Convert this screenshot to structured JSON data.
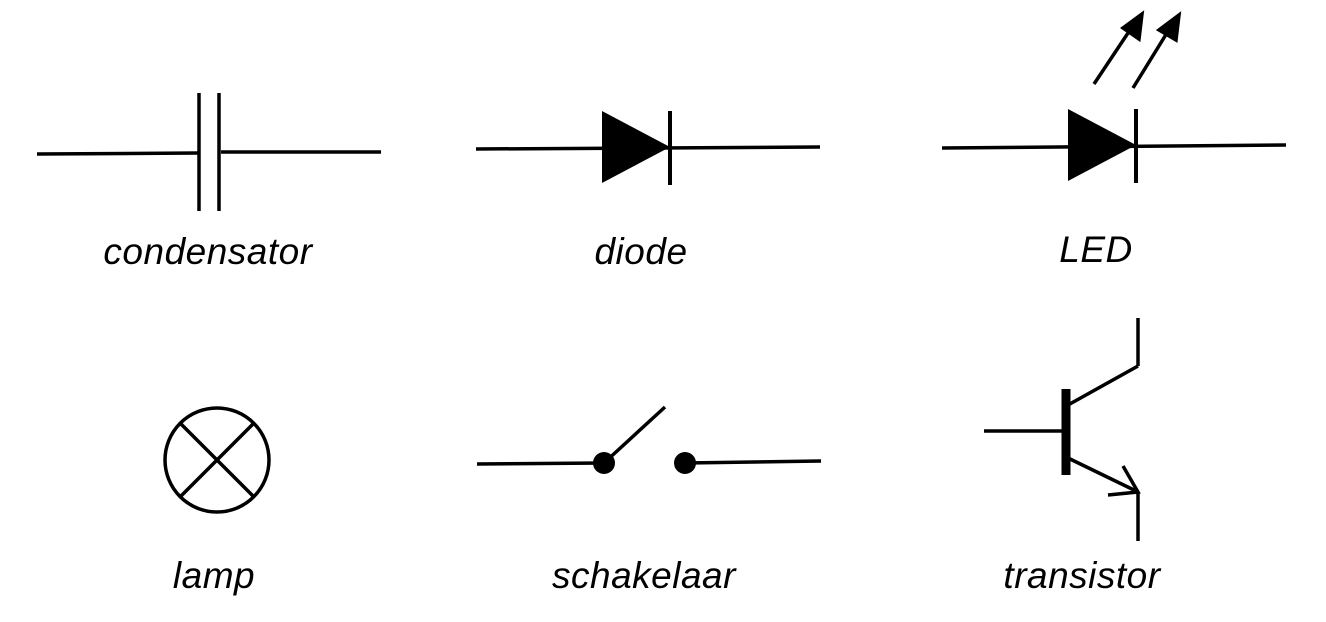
{
  "components": [
    {
      "id": "condensator",
      "label": "condensator"
    },
    {
      "id": "diode",
      "label": "diode"
    },
    {
      "id": "led",
      "label": "LED"
    },
    {
      "id": "lamp",
      "label": "lamp"
    },
    {
      "id": "schakelaar",
      "label": "schakelaar"
    },
    {
      "id": "transistor",
      "label": "transistor"
    }
  ],
  "colors": {
    "stroke": "#000000",
    "background": "#ffffff"
  }
}
